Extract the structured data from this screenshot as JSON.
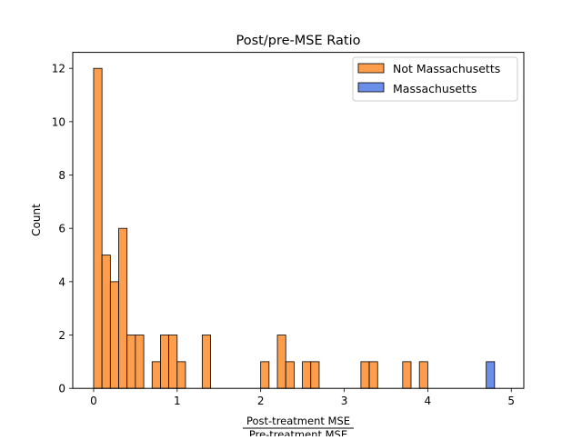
{
  "chart_data": {
    "type": "bar",
    "title": "Post/pre-MSE Ratio",
    "xlabel": {
      "numerator": "Post-treatment MSE",
      "denominator": "Pre-treatment MSE"
    },
    "ylabel": "Count",
    "xlim": [
      -0.25,
      5.15
    ],
    "ylim": [
      0,
      12.6
    ],
    "xticks": [
      0,
      1,
      2,
      3,
      4,
      5
    ],
    "yticks": [
      0,
      2,
      4,
      6,
      8,
      10,
      12
    ],
    "bin_width": 0.1,
    "legend_position": "top-right",
    "series": [
      {
        "name": "Not Massachusetts",
        "color": "#fe9e4d",
        "bins": [
          {
            "x0": 0.0,
            "x1": 0.1,
            "count": 12
          },
          {
            "x0": 0.1,
            "x1": 0.2,
            "count": 5
          },
          {
            "x0": 0.2,
            "x1": 0.3,
            "count": 4
          },
          {
            "x0": 0.3,
            "x1": 0.4,
            "count": 6
          },
          {
            "x0": 0.4,
            "x1": 0.5,
            "count": 2
          },
          {
            "x0": 0.5,
            "x1": 0.6,
            "count": 2
          },
          {
            "x0": 0.7,
            "x1": 0.8,
            "count": 1
          },
          {
            "x0": 0.8,
            "x1": 0.9,
            "count": 2
          },
          {
            "x0": 0.9,
            "x1": 1.0,
            "count": 2
          },
          {
            "x0": 1.0,
            "x1": 1.1,
            "count": 1
          },
          {
            "x0": 1.3,
            "x1": 1.4,
            "count": 2
          },
          {
            "x0": 2.0,
            "x1": 2.1,
            "count": 1
          },
          {
            "x0": 2.2,
            "x1": 2.3,
            "count": 2
          },
          {
            "x0": 2.3,
            "x1": 2.4,
            "count": 1
          },
          {
            "x0": 2.5,
            "x1": 2.6,
            "count": 1
          },
          {
            "x0": 2.6,
            "x1": 2.7,
            "count": 1
          },
          {
            "x0": 3.2,
            "x1": 3.3,
            "count": 1
          },
          {
            "x0": 3.3,
            "x1": 3.4,
            "count": 1
          },
          {
            "x0": 3.7,
            "x1": 3.8,
            "count": 1
          },
          {
            "x0": 3.9,
            "x1": 4.0,
            "count": 1
          }
        ]
      },
      {
        "name": "Massachusetts",
        "color": "#6b8ee8",
        "bins": [
          {
            "x0": 4.7,
            "x1": 4.8,
            "count": 1
          }
        ]
      }
    ]
  }
}
